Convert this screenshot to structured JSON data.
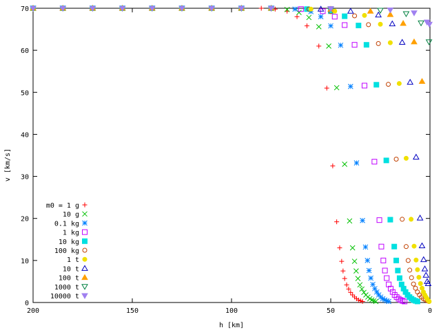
{
  "chart_data": {
    "type": "scatter",
    "title": "",
    "xlabel": "h [km]",
    "ylabel": "v [km/s]",
    "xlim": [
      200,
      0
    ],
    "ylim": [
      0,
      70
    ],
    "x_ticks": [
      "200",
      "150",
      "100",
      "50",
      "0"
    ],
    "y_ticks": [
      "0",
      "10",
      "20",
      "30",
      "40",
      "50",
      "60",
      "70"
    ],
    "legend_position": "lower-left",
    "series": [
      {
        "name": "m0 = 1 g",
        "color": "#ff0000",
        "marker": "plus",
        "points": [
          [
            200,
            70
          ],
          [
            185,
            70
          ],
          [
            170,
            70
          ],
          [
            155,
            70
          ],
          [
            140,
            70
          ],
          [
            125,
            70
          ],
          [
            110,
            70
          ],
          [
            95,
            70
          ],
          [
            85,
            70
          ],
          [
            78,
            69.8
          ],
          [
            72,
            69.3
          ],
          [
            67,
            68
          ],
          [
            62,
            65.8
          ],
          [
            56,
            61
          ],
          [
            52,
            51
          ],
          [
            49,
            32.5
          ],
          [
            47,
            19.2
          ],
          [
            45.5,
            13
          ],
          [
            44.5,
            9.8
          ],
          [
            43.8,
            7.5
          ],
          [
            43,
            5.7
          ],
          [
            42,
            4.2
          ],
          [
            41,
            3.2
          ],
          [
            40,
            2.4
          ],
          [
            39,
            1.8
          ],
          [
            38,
            1.3
          ],
          [
            37,
            0.9
          ],
          [
            36,
            0.6
          ],
          [
            35,
            0.4
          ],
          [
            34,
            0.25
          ]
        ]
      },
      {
        "name": "10 g",
        "color": "#00c000",
        "marker": "cross",
        "points": [
          [
            200,
            70
          ],
          [
            185,
            70
          ],
          [
            170,
            70
          ],
          [
            155,
            70
          ],
          [
            140,
            70
          ],
          [
            125,
            70
          ],
          [
            110,
            70
          ],
          [
            95,
            70
          ],
          [
            80,
            70
          ],
          [
            72,
            69.7
          ],
          [
            66,
            69
          ],
          [
            61,
            67.8
          ],
          [
            56,
            65.6
          ],
          [
            51,
            61
          ],
          [
            47,
            51.1
          ],
          [
            43,
            32.9
          ],
          [
            40.5,
            19.4
          ],
          [
            39,
            13
          ],
          [
            38,
            9.8
          ],
          [
            37.2,
            7.5
          ],
          [
            36.3,
            5.7
          ],
          [
            35.3,
            4.2
          ],
          [
            34.3,
            3.2
          ],
          [
            33.3,
            2.4
          ],
          [
            32.3,
            1.8
          ],
          [
            31.3,
            1.3
          ],
          [
            30.3,
            0.9
          ],
          [
            29.3,
            0.6
          ],
          [
            28.3,
            0.4
          ],
          [
            27.3,
            0.25
          ]
        ]
      },
      {
        "name": "0.1 kg",
        "color": "#0080ff",
        "marker": "star",
        "points": [
          [
            200,
            70
          ],
          [
            185,
            70
          ],
          [
            170,
            70
          ],
          [
            155,
            70
          ],
          [
            140,
            70
          ],
          [
            125,
            70
          ],
          [
            110,
            70
          ],
          [
            95,
            70
          ],
          [
            80,
            70
          ],
          [
            68,
            69.8
          ],
          [
            60,
            69.2
          ],
          [
            55,
            68
          ],
          [
            50,
            65.8
          ],
          [
            45,
            61.2
          ],
          [
            40,
            51.4
          ],
          [
            37,
            33.2
          ],
          [
            34,
            19.5
          ],
          [
            32.5,
            13.2
          ],
          [
            31.5,
            10
          ],
          [
            30.7,
            7.6
          ],
          [
            29.8,
            5.8
          ],
          [
            28.8,
            4.3
          ],
          [
            27.8,
            3.3
          ],
          [
            26.8,
            2.5
          ],
          [
            25.8,
            1.8
          ],
          [
            24.8,
            1.3
          ],
          [
            23.8,
            0.9
          ],
          [
            22.8,
            0.6
          ],
          [
            21.8,
            0.4
          ],
          [
            20.8,
            0.25
          ]
        ]
      },
      {
        "name": "1 kg",
        "color": "#c000ff",
        "marker": "square",
        "points": [
          [
            200,
            70
          ],
          [
            185,
            70
          ],
          [
            170,
            70
          ],
          [
            155,
            70
          ],
          [
            140,
            70
          ],
          [
            125,
            70
          ],
          [
            110,
            70
          ],
          [
            95,
            70
          ],
          [
            80,
            70
          ],
          [
            65,
            69.8
          ],
          [
            54,
            69.3
          ],
          [
            48,
            68
          ],
          [
            43,
            66
          ],
          [
            38,
            61.3
          ],
          [
            33,
            51.6
          ],
          [
            28,
            33.5
          ],
          [
            25.5,
            19.6
          ],
          [
            24.5,
            13.3
          ],
          [
            23.5,
            10
          ],
          [
            22.7,
            7.6
          ],
          [
            21.8,
            5.8
          ],
          [
            20.8,
            4.3
          ],
          [
            19.8,
            3.3
          ],
          [
            18.8,
            2.5
          ],
          [
            17.8,
            1.8
          ],
          [
            16.8,
            1.3
          ],
          [
            15.8,
            0.9
          ],
          [
            14.8,
            0.6
          ],
          [
            13.8,
            0.4
          ],
          [
            12.8,
            0.25
          ]
        ]
      },
      {
        "name": "10 kg",
        "color": "#00e0e0",
        "marker": "filled-square",
        "points": [
          [
            200,
            70
          ],
          [
            185,
            70
          ],
          [
            170,
            70
          ],
          [
            155,
            70
          ],
          [
            140,
            70
          ],
          [
            125,
            70
          ],
          [
            110,
            70
          ],
          [
            95,
            70
          ],
          [
            80,
            70
          ],
          [
            62,
            69.8
          ],
          [
            50,
            69.3
          ],
          [
            43,
            68.1
          ],
          [
            36,
            65.9
          ],
          [
            32,
            61.3
          ],
          [
            27,
            51.8
          ],
          [
            22,
            33.8
          ],
          [
            20,
            19.7
          ],
          [
            18,
            13.3
          ],
          [
            17,
            10
          ],
          [
            16.2,
            7.6
          ],
          [
            15.3,
            5.8
          ],
          [
            14.3,
            4.3
          ],
          [
            13.3,
            3.3
          ],
          [
            12.3,
            2.5
          ],
          [
            11.3,
            1.8
          ],
          [
            10.3,
            1.3
          ],
          [
            9.3,
            0.9
          ],
          [
            8.3,
            0.6
          ],
          [
            7.3,
            0.4
          ],
          [
            6.3,
            0.25
          ]
        ]
      },
      {
        "name": "100 kg",
        "color": "#c04000",
        "marker": "circle",
        "points": [
          [
            200,
            70
          ],
          [
            185,
            70
          ],
          [
            170,
            70
          ],
          [
            155,
            70
          ],
          [
            140,
            70
          ],
          [
            125,
            70
          ],
          [
            110,
            70
          ],
          [
            95,
            70
          ],
          [
            80,
            70
          ],
          [
            61,
            69.8
          ],
          [
            50,
            69.2
          ],
          [
            38,
            68.2
          ],
          [
            31,
            66.1
          ],
          [
            26,
            61.6
          ],
          [
            21,
            51.9
          ],
          [
            17,
            34.1
          ],
          [
            14,
            19.8
          ],
          [
            12,
            13.3
          ],
          [
            11,
            10
          ],
          [
            10.2,
            7.7
          ],
          [
            9.3,
            5.9
          ],
          [
            8.3,
            4.4
          ],
          [
            7.3,
            3.4
          ],
          [
            6.3,
            2.5
          ],
          [
            5.3,
            1.8
          ],
          [
            4.3,
            1.3
          ],
          [
            3.3,
            0.9
          ],
          [
            2.3,
            0.6
          ],
          [
            1.3,
            0.4
          ],
          [
            0.5,
            0.25
          ]
        ]
      },
      {
        "name": "1 t",
        "color": "#f0e000",
        "marker": "filled-circle",
        "points": [
          [
            200,
            70
          ],
          [
            185,
            70
          ],
          [
            170,
            70
          ],
          [
            155,
            70
          ],
          [
            140,
            70
          ],
          [
            125,
            70
          ],
          [
            110,
            70
          ],
          [
            95,
            70
          ],
          [
            80,
            70
          ],
          [
            60,
            69.8
          ],
          [
            48,
            69.3
          ],
          [
            33,
            68.3
          ],
          [
            25,
            66.2
          ],
          [
            20,
            61.8
          ],
          [
            15.5,
            52.1
          ],
          [
            12,
            34.3
          ],
          [
            9.5,
            19.8
          ],
          [
            8,
            13.4
          ],
          [
            7,
            10.1
          ],
          [
            6.3,
            7.8
          ],
          [
            5.6,
            6
          ],
          [
            4.8,
            4.5
          ],
          [
            4,
            3.4
          ],
          [
            3.3,
            2.5
          ],
          [
            2.6,
            1.8
          ],
          [
            2,
            1.3
          ],
          [
            1.5,
            0.9
          ],
          [
            1.1,
            0.6
          ],
          [
            0.7,
            0.4
          ],
          [
            0.4,
            0.25
          ]
        ]
      },
      {
        "name": "10 t",
        "color": "#0000c0",
        "marker": "triangle",
        "points": [
          [
            200,
            70
          ],
          [
            185,
            70
          ],
          [
            170,
            70
          ],
          [
            155,
            70
          ],
          [
            140,
            70
          ],
          [
            125,
            70
          ],
          [
            110,
            70
          ],
          [
            95,
            70
          ],
          [
            80,
            70
          ],
          [
            55,
            69.8
          ],
          [
            40,
            69.3
          ],
          [
            26,
            68.4
          ],
          [
            19,
            66.3
          ],
          [
            14,
            61.9
          ],
          [
            10,
            52.4
          ],
          [
            7,
            34.6
          ],
          [
            5,
            20.1
          ],
          [
            4,
            13.5
          ],
          [
            3.2,
            10.2
          ],
          [
            2.6,
            8
          ],
          [
            2,
            6.5
          ],
          [
            1.4,
            5
          ],
          [
            0.9,
            4.5
          ]
        ]
      },
      {
        "name": "100 t",
        "color": "#ffa000",
        "marker": "filled-triangle",
        "points": [
          [
            200,
            70
          ],
          [
            185,
            70
          ],
          [
            170,
            70
          ],
          [
            155,
            70
          ],
          [
            140,
            70
          ],
          [
            125,
            70
          ],
          [
            110,
            70
          ],
          [
            95,
            70
          ],
          [
            80,
            70
          ],
          [
            50,
            69.8
          ],
          [
            30,
            69.3
          ],
          [
            20,
            68.5
          ],
          [
            13.5,
            66.4
          ],
          [
            8,
            62
          ],
          [
            4,
            52.6
          ]
        ]
      },
      {
        "name": "1000 t",
        "color": "#008040",
        "marker": "triangle-down",
        "points": [
          [
            200,
            70
          ],
          [
            185,
            70
          ],
          [
            170,
            70
          ],
          [
            155,
            70
          ],
          [
            140,
            70
          ],
          [
            125,
            70
          ],
          [
            110,
            70
          ],
          [
            95,
            70
          ],
          [
            80,
            70
          ],
          [
            50,
            69.9
          ],
          [
            25,
            69.5
          ],
          [
            12,
            68.7
          ],
          [
            4.5,
            66.5
          ],
          [
            0.5,
            62
          ]
        ]
      },
      {
        "name": "10000 t",
        "color": "#a080f0",
        "marker": "filled-triangle-down",
        "points": [
          [
            200,
            70
          ],
          [
            185,
            70
          ],
          [
            170,
            70
          ],
          [
            155,
            70
          ],
          [
            140,
            70
          ],
          [
            125,
            70
          ],
          [
            110,
            70
          ],
          [
            95,
            70
          ],
          [
            80,
            70
          ],
          [
            50,
            69.9
          ],
          [
            20,
            69.6
          ],
          [
            8,
            68.9
          ],
          [
            1.5,
            66.7
          ],
          [
            0.3,
            66.2
          ]
        ]
      }
    ]
  }
}
